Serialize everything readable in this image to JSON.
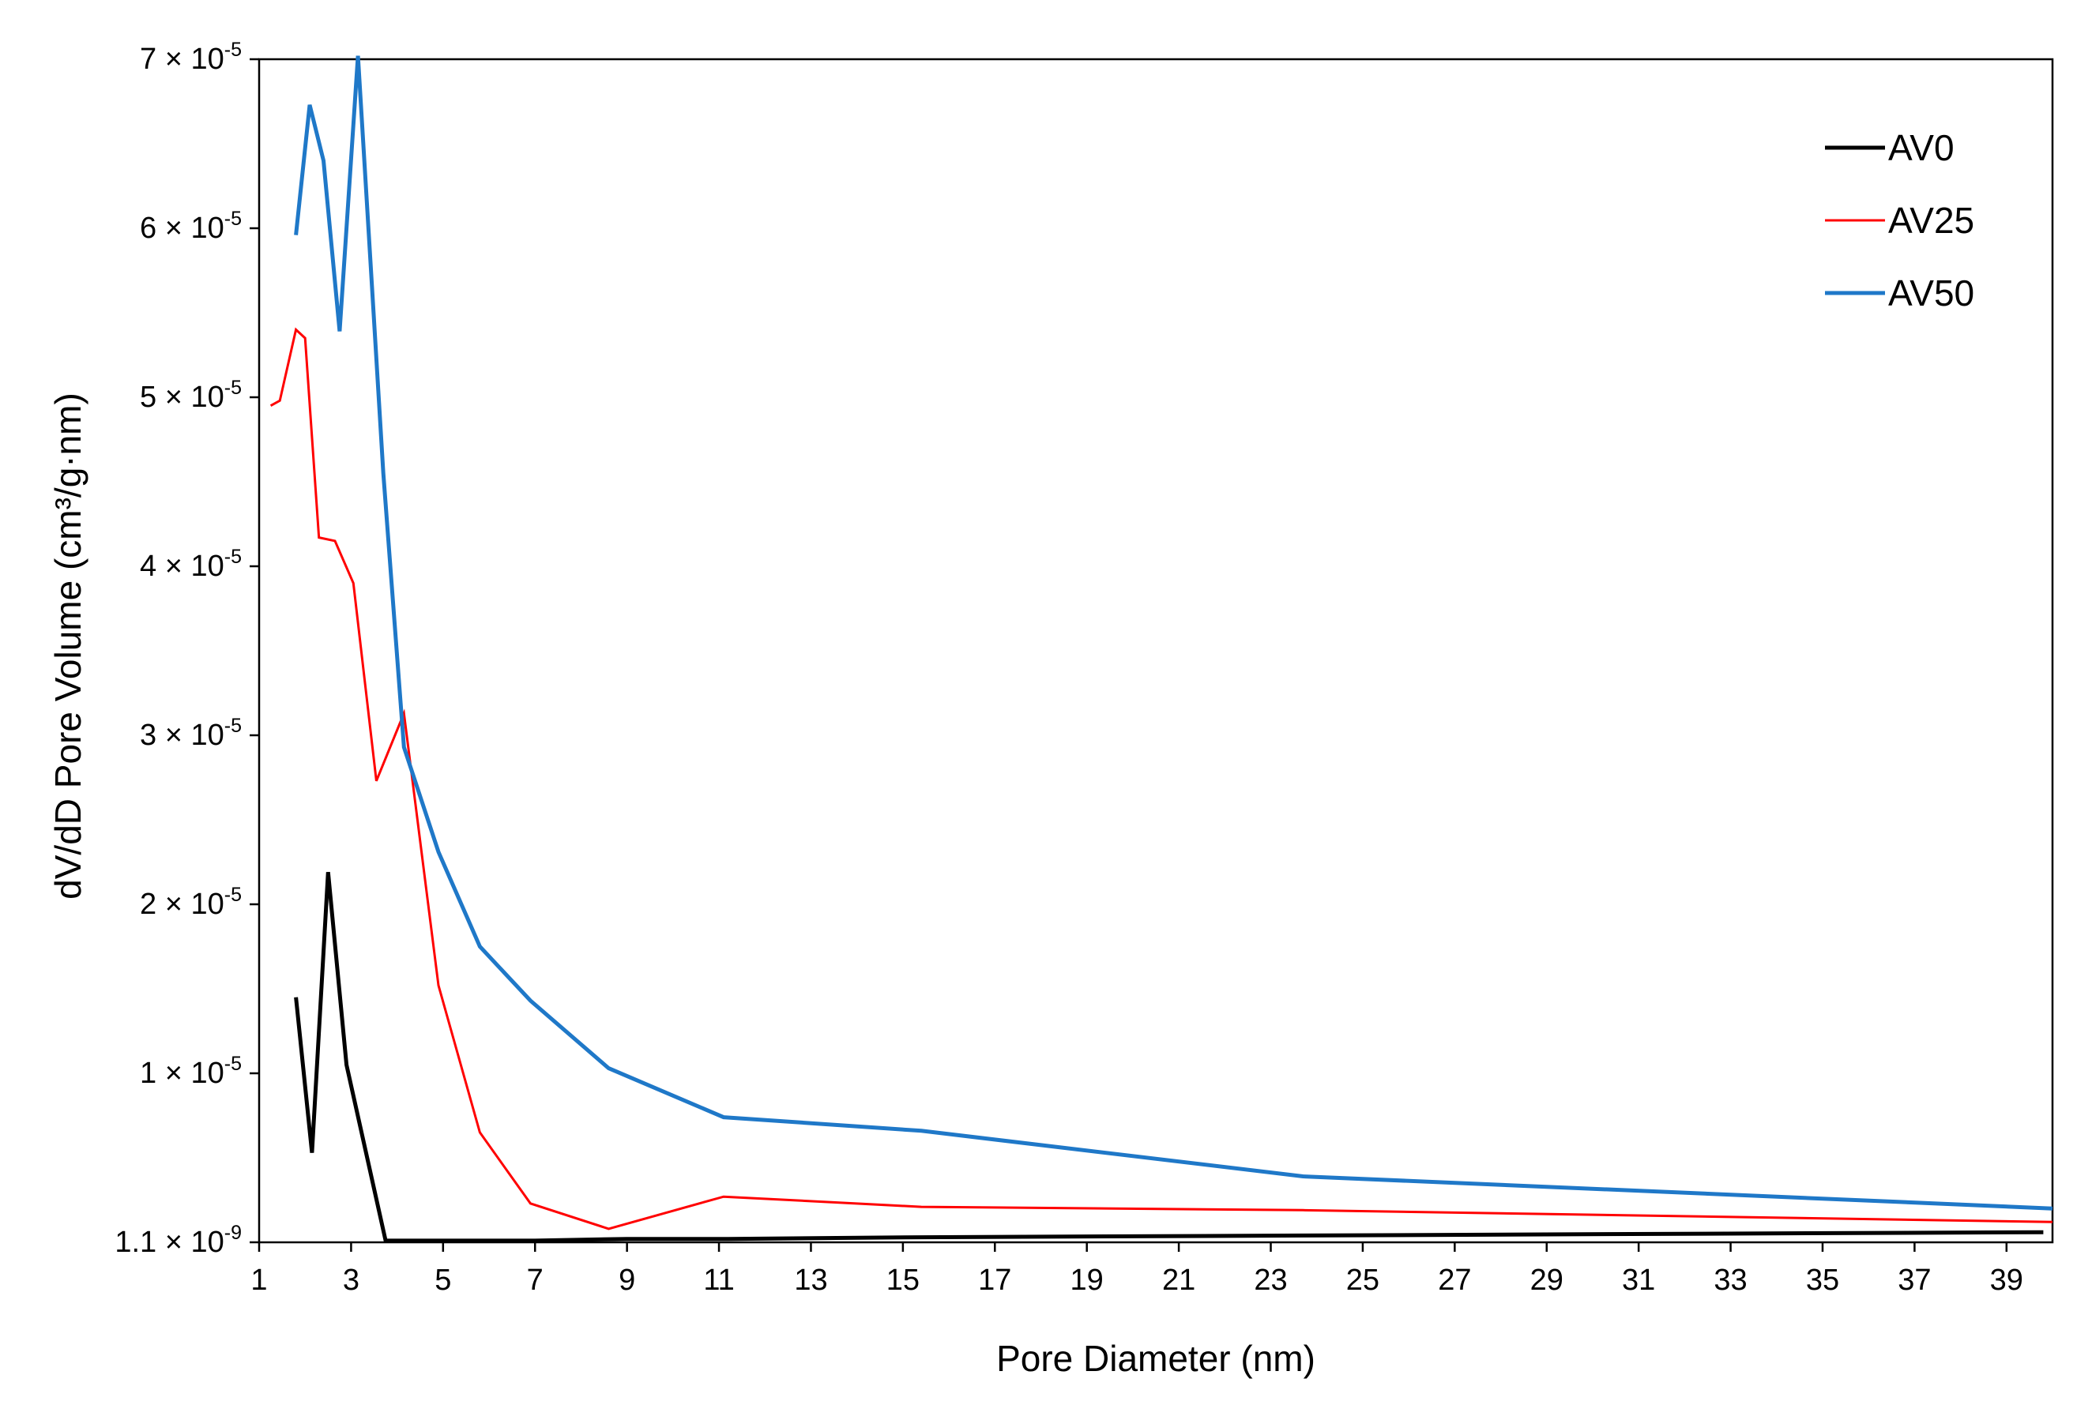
{
  "chart_data": {
    "type": "line",
    "title": "",
    "xlabel": "Pore Diameter (nm)",
    "ylabel": "dV/dD Pore Volume (cm³/g·nm)",
    "xlim": [
      1,
      40
    ],
    "ylim": [
      0,
      7e-05
    ],
    "x_ticks": [
      "1",
      "3",
      "5",
      "7",
      "9",
      "11",
      "13",
      "15",
      "17",
      "19",
      "21",
      "23",
      "25",
      "27",
      "29",
      "31",
      "33",
      "35",
      "37",
      "39"
    ],
    "y_ticks": [
      {
        "value": 1.1e-09,
        "mantissa": "1.1",
        "exponent": "-9"
      },
      {
        "value": 1e-05,
        "mantissa": "1",
        "exponent": "-5"
      },
      {
        "value": 2e-05,
        "mantissa": "2",
        "exponent": "-5"
      },
      {
        "value": 3e-05,
        "mantissa": "3",
        "exponent": "-5"
      },
      {
        "value": 4e-05,
        "mantissa": "4",
        "exponent": "-5"
      },
      {
        "value": 5e-05,
        "mantissa": "5",
        "exponent": "-5"
      },
      {
        "value": 6e-05,
        "mantissa": "6",
        "exponent": "-5"
      },
      {
        "value": 7e-05,
        "mantissa": "7",
        "exponent": "-5"
      }
    ],
    "multiply_sign": "×",
    "exponent_base": "10",
    "grid": false,
    "legend_position": "top-right",
    "series": [
      {
        "name": "AV0",
        "color": "#000000",
        "points": [
          [
            1.8,
            1.45e-05
          ],
          [
            2.15,
            5.3e-06
          ],
          [
            2.5,
            2.19e-05
          ],
          [
            2.9,
            1.05e-05
          ],
          [
            3.75,
            1e-07
          ],
          [
            5,
            1e-07
          ],
          [
            7,
            1e-07
          ],
          [
            9,
            2e-07
          ],
          [
            11.2,
            2e-07
          ],
          [
            15.4,
            3e-07
          ],
          [
            23.7,
            4e-07
          ],
          [
            39.8,
            6e-07
          ]
        ]
      },
      {
        "name": "AV25",
        "color": "#ff0000",
        "points": [
          [
            1.25,
            4.95e-05
          ],
          [
            1.45,
            4.98e-05
          ],
          [
            1.8,
            5.4e-05
          ],
          [
            2.0,
            5.35e-05
          ],
          [
            2.3,
            4.17e-05
          ],
          [
            2.65,
            4.15e-05
          ],
          [
            3.05,
            3.9e-05
          ],
          [
            3.55,
            2.73e-05
          ],
          [
            4.15,
            3.13e-05
          ],
          [
            4.9,
            1.52e-05
          ],
          [
            5.8,
            6.5e-06
          ],
          [
            6.9,
            2.3e-06
          ],
          [
            8.6,
            8e-07
          ],
          [
            11.1,
            2.7e-06
          ],
          [
            15.4,
            2.1e-06
          ],
          [
            23.7,
            1.9e-06
          ],
          [
            40,
            1.2e-06
          ]
        ]
      },
      {
        "name": "AV50",
        "color": "#1f78c8",
        "points": [
          [
            1.8,
            5.96e-05
          ],
          [
            2.1,
            6.73e-05
          ],
          [
            2.4,
            6.4e-05
          ],
          [
            2.75,
            5.39e-05
          ],
          [
            3.15,
            7.02e-05
          ],
          [
            3.7,
            4.55e-05
          ],
          [
            4.15,
            2.93e-05
          ],
          [
            4.9,
            2.31e-05
          ],
          [
            5.8,
            1.75e-05
          ],
          [
            6.9,
            1.43e-05
          ],
          [
            8.6,
            1.03e-05
          ],
          [
            11.1,
            7.4e-06
          ],
          [
            15.4,
            6.6e-06
          ],
          [
            23.7,
            3.9e-06
          ],
          [
            40,
            2e-06
          ]
        ]
      }
    ]
  }
}
